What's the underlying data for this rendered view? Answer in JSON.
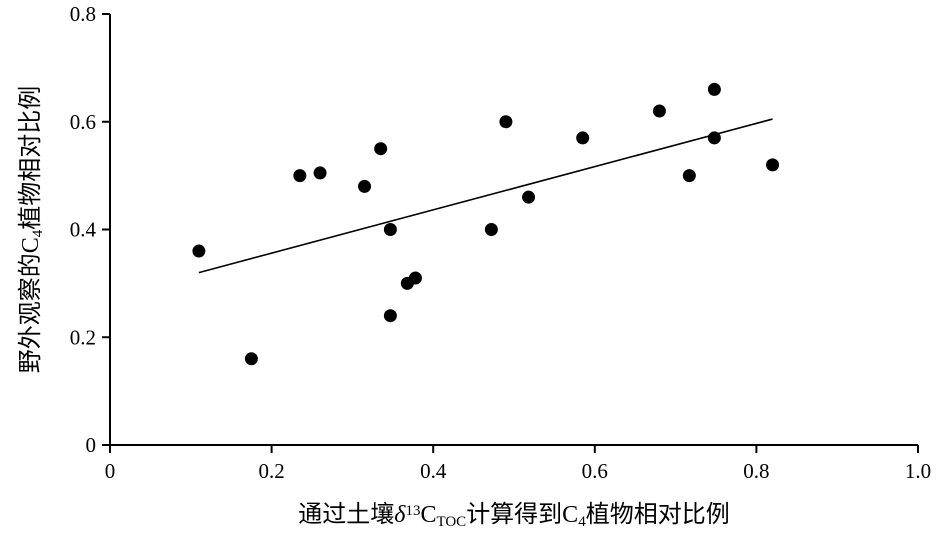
{
  "chart_data": {
    "type": "scatter",
    "title": "",
    "xlabel": {
      "parts": [
        {
          "text": "通过土壤"
        },
        {
          "text": "δ",
          "style": "italic"
        },
        {
          "text": "13",
          "style": "sup"
        },
        {
          "text": "C"
        },
        {
          "text": "TOC",
          "style": "sub"
        },
        {
          "text": "计算得到C"
        },
        {
          "text": "4",
          "style": "sub"
        },
        {
          "text": "植物相对比例"
        }
      ]
    },
    "ylabel": {
      "parts": [
        {
          "text": "野外观察的C"
        },
        {
          "text": "4",
          "style": "sub"
        },
        {
          "text": "植物相对比例"
        }
      ]
    },
    "xlim": [
      0,
      1.0
    ],
    "ylim": [
      0,
      0.8
    ],
    "x_ticks": [
      0,
      0.2,
      0.4,
      0.6,
      0.8,
      1.0
    ],
    "x_tick_labels": [
      "0",
      "0.2",
      "0.4",
      "0.6",
      "0.8",
      "1.0"
    ],
    "y_ticks": [
      0,
      0.2,
      0.4,
      0.6,
      0.8
    ],
    "y_tick_labels": [
      "0",
      "0.2",
      "0.4",
      "0.6",
      "0.8"
    ],
    "grid": false,
    "legend": "none",
    "points": [
      {
        "x": 0.11,
        "y": 0.36
      },
      {
        "x": 0.175,
        "y": 0.16
      },
      {
        "x": 0.235,
        "y": 0.5
      },
      {
        "x": 0.26,
        "y": 0.505
      },
      {
        "x": 0.315,
        "y": 0.48
      },
      {
        "x": 0.335,
        "y": 0.55
      },
      {
        "x": 0.347,
        "y": 0.4
      },
      {
        "x": 0.347,
        "y": 0.24
      },
      {
        "x": 0.368,
        "y": 0.3
      },
      {
        "x": 0.378,
        "y": 0.31
      },
      {
        "x": 0.472,
        "y": 0.4
      },
      {
        "x": 0.49,
        "y": 0.6
      },
      {
        "x": 0.518,
        "y": 0.46
      },
      {
        "x": 0.585,
        "y": 0.57
      },
      {
        "x": 0.68,
        "y": 0.62
      },
      {
        "x": 0.717,
        "y": 0.5
      },
      {
        "x": 0.748,
        "y": 0.66
      },
      {
        "x": 0.748,
        "y": 0.57
      },
      {
        "x": 0.82,
        "y": 0.52
      }
    ],
    "trendline": {
      "type": "linear",
      "x": [
        0.11,
        0.82
      ],
      "y": [
        0.32,
        0.605
      ]
    },
    "colors": {
      "marker": "#000000",
      "line": "#000000",
      "axis": "#000000"
    }
  }
}
